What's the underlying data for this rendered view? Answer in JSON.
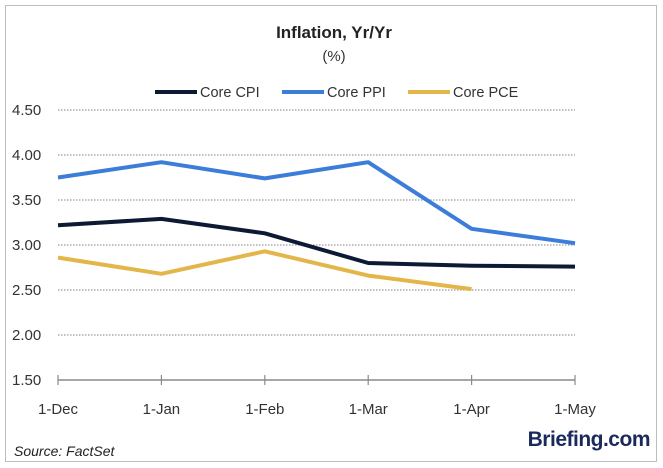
{
  "chart_data": {
    "type": "line",
    "title": "Inflation, Yr/Yr",
    "subtitle": "(%)",
    "xlabel": "",
    "ylabel": "",
    "categories": [
      "1-Dec",
      "1-Jan",
      "1-Feb",
      "1-Mar",
      "1-Apr",
      "1-May"
    ],
    "yticks": [
      "1.50",
      "2.00",
      "2.50",
      "3.00",
      "3.50",
      "4.00",
      "4.50"
    ],
    "ylim": [
      1.5,
      4.5
    ],
    "grid": "horizontal-dotted",
    "legend_position": "top",
    "series": [
      {
        "name": "Core CPI",
        "color": "#0d1a33",
        "values": [
          3.22,
          3.29,
          3.13,
          2.8,
          2.77,
          2.76
        ]
      },
      {
        "name": "Core PPI",
        "color": "#3b7dd8",
        "values": [
          3.75,
          3.92,
          3.74,
          3.92,
          3.18,
          3.02
        ]
      },
      {
        "name": "Core PCE",
        "color": "#e3b64a",
        "values": [
          2.86,
          2.68,
          2.93,
          2.66,
          2.51
        ]
      }
    ]
  },
  "footer": {
    "source": "Source: FactSet",
    "brand": "Briefing.com"
  }
}
